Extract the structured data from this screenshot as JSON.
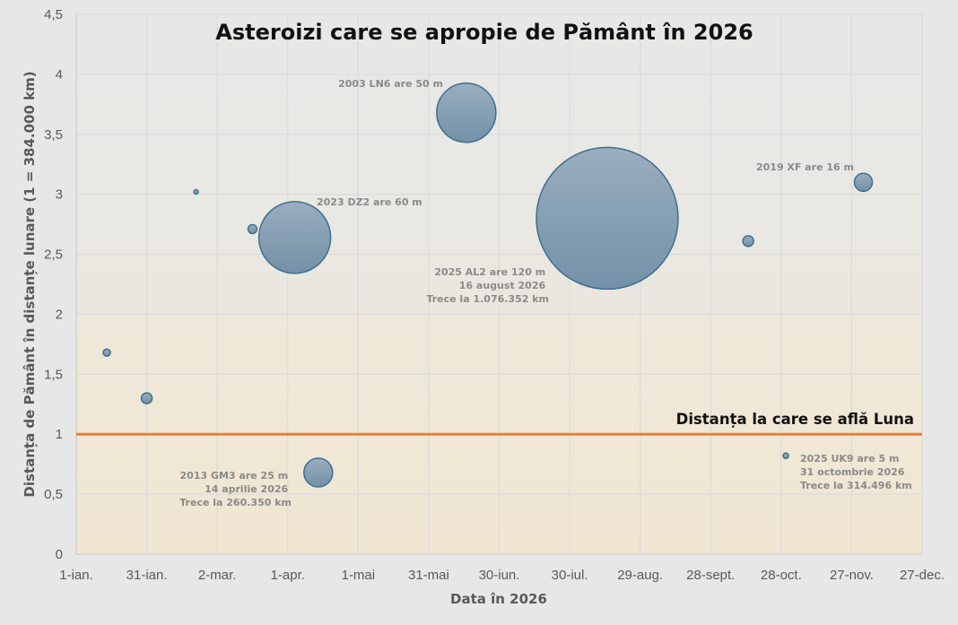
{
  "chart_data": {
    "type": "bubble",
    "title": "Asteroizi care se apropie de Pământ în 2026",
    "xlabel": "Data în 2026",
    "ylabel": "Distanța de Pământ în distanțe lunare (1 = 384.000 km)",
    "x_ticks": [
      "1-ian.",
      "31-ian.",
      "2-mar.",
      "1-apr.",
      "1-mai",
      "31-mai",
      "30-iun.",
      "30-iul.",
      "29-aug.",
      "28-sept.",
      "28-oct.",
      "27-nov.",
      "27-dec."
    ],
    "y_ticks": [
      "0",
      "0,5",
      "1",
      "1,5",
      "2",
      "2,5",
      "3",
      "3,5",
      "4",
      "4,5"
    ],
    "ylim": [
      0,
      4.5
    ],
    "x_range_days": [
      0,
      360
    ],
    "grid": true,
    "legend": "none",
    "reference_line": {
      "y": 1,
      "label": "Distanța la care se află Luna",
      "color": "#ed7d31"
    },
    "series": [
      {
        "name": "Asteroizi",
        "color": "#7f9bb2",
        "points": [
          {
            "day": 13,
            "date": "14-ian.",
            "distance_ld": 1.68,
            "radius_px": 4
          },
          {
            "day": 30,
            "date": "31-ian.",
            "distance_ld": 1.3,
            "radius_px": 6
          },
          {
            "day": 51,
            "date": "21-feb.",
            "distance_ld": 3.02,
            "radius_px": 2.5
          },
          {
            "day": 75,
            "date": "17-mar.",
            "distance_ld": 2.71,
            "radius_px": 5
          },
          {
            "day": 93,
            "date": "3-apr.",
            "distance_ld": 2.64,
            "radius_px": 40,
            "name": "2023 DZ2",
            "size_m": 60
          },
          {
            "day": 103,
            "date": "14-apr.",
            "distance_ld": 0.68,
            "radius_px": 16,
            "name": "2013 GM3",
            "size_m": 25
          },
          {
            "day": 166,
            "date": "15-iun.",
            "distance_ld": 3.68,
            "radius_px": 33,
            "name": "2003 LN6",
            "size_m": 50
          },
          {
            "day": 226,
            "date": "16-aug.",
            "distance_ld": 2.8,
            "radius_px": 79,
            "name": "2025 AL2",
            "size_m": 120
          },
          {
            "day": 286,
            "date": "13-oct.",
            "distance_ld": 2.61,
            "radius_px": 6
          },
          {
            "day": 302,
            "date": "31-oct.",
            "distance_ld": 0.82,
            "radius_px": 3,
            "name": "2025 UK9",
            "size_m": 5
          },
          {
            "day": 335,
            "date": "2-dec.",
            "distance_ld": 3.1,
            "radius_px": 10,
            "name": "2019 XF",
            "size_m": 16
          }
        ]
      }
    ],
    "annotations": [
      {
        "id": "ln6",
        "lines": [
          "2003 LN6 are 50 m"
        ]
      },
      {
        "id": "dz2",
        "lines": [
          "2023 DZ2 are 60 m"
        ]
      },
      {
        "id": "al2",
        "lines": [
          "2025 AL2 are 120 m",
          "16 august 2026",
          "Trece la 1.076.352 km"
        ]
      },
      {
        "id": "xf",
        "lines": [
          "2019 XF are 16 m"
        ]
      },
      {
        "id": "gm3",
        "lines": [
          "2013 GM3 are 25 m",
          "14 aprilie 2026",
          "Trece la 260.350 km"
        ]
      },
      {
        "id": "uk9",
        "lines": [
          "2025 UK9 are 5 m",
          "31 octombrie 2026",
          "Trece la 314.496 km"
        ]
      }
    ]
  },
  "colors": {
    "background": "#e7e7e7",
    "bubble_fill_top": "#9aaebe",
    "bubble_fill_bottom": "#7391a8",
    "bubble_stroke": "#3e6f91",
    "moon_line": "#ed7d31"
  }
}
